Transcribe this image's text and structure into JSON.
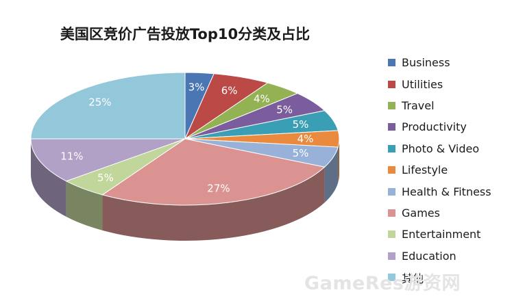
{
  "chart_data": {
    "type": "pie",
    "title": "美国区竞价广告投放Top10分类及占比",
    "categories": [
      "Business",
      "Utilities",
      "Travel",
      "Productivity",
      "Photo & Video",
      "Lifestyle",
      "Health & Fitness",
      "Games",
      "Entertainment",
      "Education",
      "其他"
    ],
    "values": [
      3,
      6,
      4,
      5,
      5,
      4,
      5,
      27,
      5,
      11,
      25
    ],
    "value_labels": [
      "3%",
      "6%",
      "4%",
      "5%",
      "5%",
      "4%",
      "5%",
      "27%",
      "5%",
      "11%",
      "25%"
    ],
    "colors": [
      "#4a77b3",
      "#bb4a47",
      "#93b254",
      "#7b5d9e",
      "#3a9fb4",
      "#e98a3e",
      "#98b1d8",
      "#da9391",
      "#c1d69b",
      "#b1a1c6",
      "#92c8d9"
    ],
    "legend_position": "right",
    "style": "3d"
  },
  "watermark": "GameRes游资网"
}
